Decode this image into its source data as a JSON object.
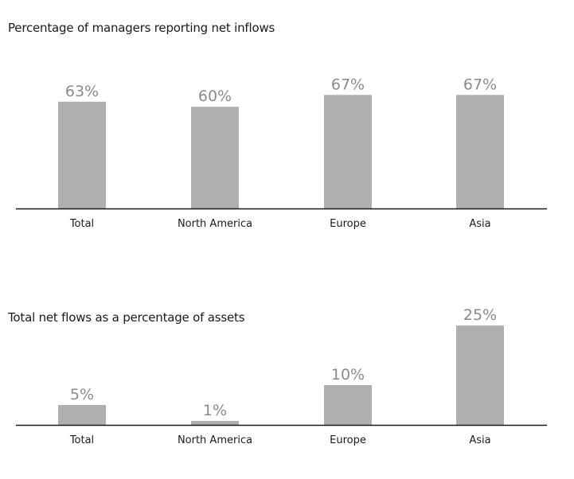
{
  "colors": {
    "bar": "#b0afb0",
    "value_label": "#8a8a8a",
    "axis": "#1a1a1a"
  },
  "chart_data": [
    {
      "type": "bar",
      "title": "Percentage of managers reporting net inflows",
      "categories": [
        "Total",
        "North America",
        "Europe",
        "Asia"
      ],
      "values": [
        63,
        60,
        67,
        67
      ],
      "value_labels": [
        "63%",
        "60%",
        "67%",
        "67%"
      ],
      "ylim": [
        0,
        100
      ],
      "grid": false,
      "legend": "none"
    },
    {
      "type": "bar",
      "title": "Total net flows as a percentage of assets",
      "categories": [
        "Total",
        "North America",
        "Europe",
        "Asia"
      ],
      "values": [
        5,
        1,
        10,
        25
      ],
      "value_labels": [
        "5%",
        "1%",
        "10%",
        "25%"
      ],
      "ylim": [
        0,
        40
      ],
      "grid": false,
      "legend": "none"
    }
  ]
}
